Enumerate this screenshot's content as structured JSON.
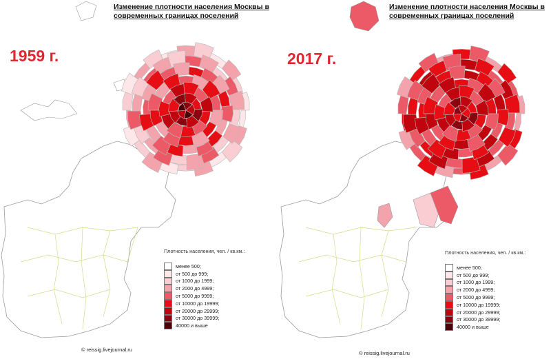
{
  "panels": [
    {
      "title": "Изменение плотности населения Москвы в современных границах поселений",
      "year": "1959 г.",
      "legend_title": "Плотность населения, чел. / кв.км.:",
      "credit": "© reissig.livejournal.ru",
      "center_levels": [
        2,
        3,
        4,
        4,
        5,
        6,
        7
      ]
    },
    {
      "title": "Изменение плотности населения Москвы в современных границах поселений",
      "year": "2017 г.",
      "legend_title": "Плотность населения, чел. / кв.км.:",
      "credit": "© reissig.livejournal.ru",
      "center_levels": [
        4,
        5,
        5,
        5,
        5,
        6,
        6
      ]
    }
  ],
  "legend": [
    {
      "label": "менее 500;",
      "color": "#ffffff"
    },
    {
      "label": "от 500 до 999;",
      "color": "#fde7e9"
    },
    {
      "label": "от 1000 до 1999;",
      "color": "#f9cdd2"
    },
    {
      "label": "от 2000 до 4999;",
      "color": "#f3a3ab"
    },
    {
      "label": "от 5000 до 9999;",
      "color": "#eb5a66"
    },
    {
      "label": "от 10000 до 19999;",
      "color": "#e60d14"
    },
    {
      "label": "от 20000 до 29999;",
      "color": "#c0050f"
    },
    {
      "label": "от 30000 до 39999;",
      "color": "#8a0410"
    },
    {
      "label": "40000 и выше",
      "color": "#4a0208"
    }
  ]
}
